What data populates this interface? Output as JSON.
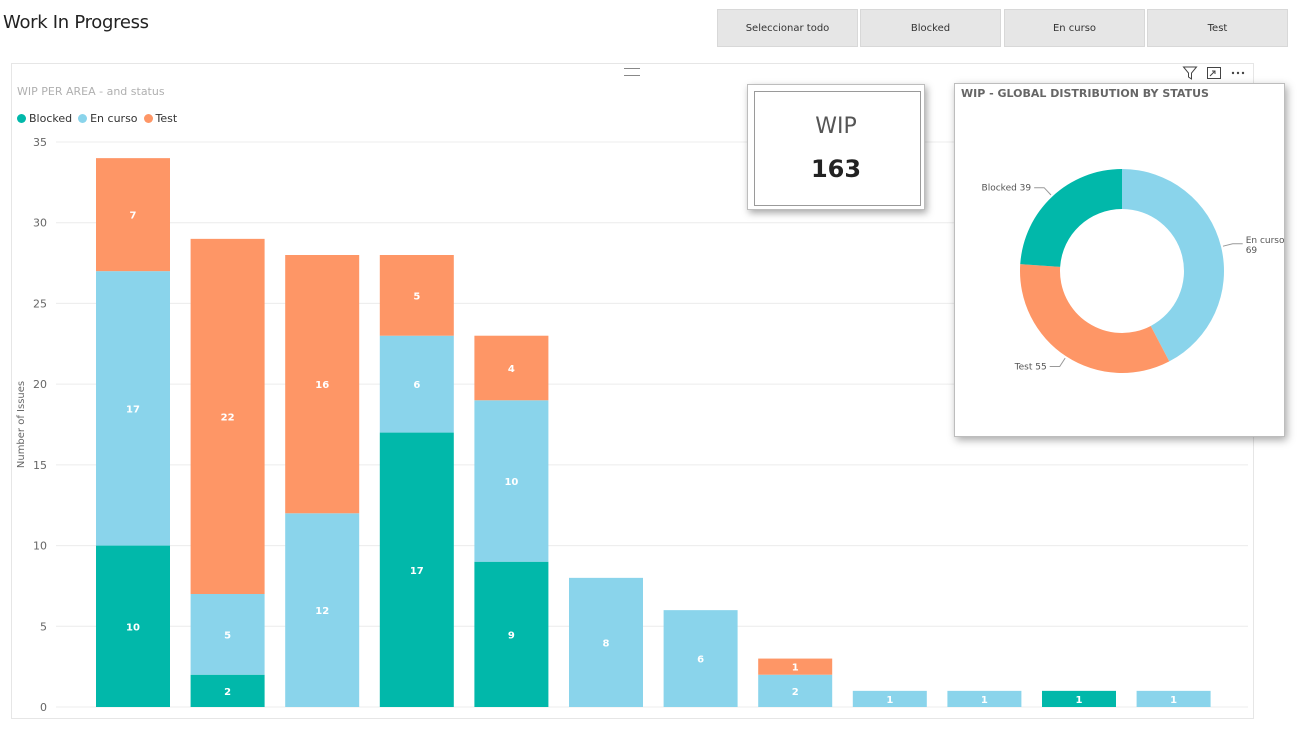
{
  "page": {
    "title": "Work In Progress"
  },
  "slicers": [
    {
      "label": "Seleccionar todo"
    },
    {
      "label": "Blocked"
    },
    {
      "label": "En curso"
    },
    {
      "label": "Test"
    }
  ],
  "icons": {
    "filter": "filter-icon",
    "focus": "focus-mode-icon",
    "more": "more-options-icon",
    "drag": "drag-handle-icon"
  },
  "wip_card": {
    "label": "WIP",
    "value": "163"
  },
  "chart_data": [
    {
      "type": "bar",
      "stacked": true,
      "title": "WIP PER AREA - and status",
      "xlabel": "",
      "ylabel": "Number of Issues",
      "ylim": [
        0,
        35
      ],
      "yticks": [
        0,
        5,
        10,
        15,
        20,
        25,
        30,
        35
      ],
      "grid": true,
      "legend": "top-left",
      "categories": [
        "",
        "",
        "",
        "",
        "",
        "",
        "",
        "",
        "",
        "",
        "",
        ""
      ],
      "series": [
        {
          "name": "Blocked",
          "color": "#01b8aa",
          "values": [
            10,
            2,
            0,
            17,
            9,
            0,
            0,
            0,
            0,
            0,
            1,
            0
          ]
        },
        {
          "name": "En curso",
          "color": "#8ad4eb",
          "values": [
            17,
            5,
            12,
            6,
            10,
            8,
            6,
            2,
            1,
            1,
            0,
            1
          ]
        },
        {
          "name": "Test",
          "color": "#fe9666",
          "values": [
            7,
            22,
            16,
            5,
            4,
            0,
            0,
            1,
            0,
            0,
            0,
            0
          ]
        }
      ]
    },
    {
      "type": "pie",
      "donut": true,
      "title": "WIP - GLOBAL DISTRIBUTION BY STATUS",
      "labels": [
        "En curso",
        "Test",
        "Blocked"
      ],
      "values": [
        69,
        55,
        39
      ],
      "colors": [
        "#8ad4eb",
        "#fe9666",
        "#01b8aa"
      ],
      "legend": "none"
    }
  ]
}
